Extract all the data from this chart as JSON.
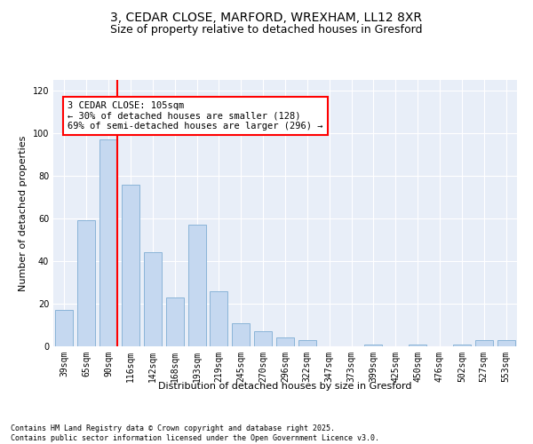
{
  "title1": "3, CEDAR CLOSE, MARFORD, WREXHAM, LL12 8XR",
  "title2": "Size of property relative to detached houses in Gresford",
  "xlabel": "Distribution of detached houses by size in Gresford",
  "ylabel": "Number of detached properties",
  "categories": [
    "39sqm",
    "65sqm",
    "90sqm",
    "116sqm",
    "142sqm",
    "168sqm",
    "193sqm",
    "219sqm",
    "245sqm",
    "270sqm",
    "296sqm",
    "322sqm",
    "347sqm",
    "373sqm",
    "399sqm",
    "425sqm",
    "450sqm",
    "476sqm",
    "502sqm",
    "527sqm",
    "553sqm"
  ],
  "values": [
    17,
    59,
    97,
    76,
    44,
    23,
    57,
    26,
    11,
    7,
    4,
    3,
    0,
    0,
    1,
    0,
    1,
    0,
    1,
    3,
    3
  ],
  "bar_color": "#c5d8f0",
  "bar_edge_color": "#8ab4d8",
  "property_line_color": "red",
  "property_line_x": 2.4,
  "annotation_text": "3 CEDAR CLOSE: 105sqm\n← 30% of detached houses are smaller (128)\n69% of semi-detached houses are larger (296) →",
  "ylim": [
    0,
    125
  ],
  "yticks": [
    0,
    20,
    40,
    60,
    80,
    100,
    120
  ],
  "bg_color": "#e8eef8",
  "footer_text": "Contains HM Land Registry data © Crown copyright and database right 2025.\nContains public sector information licensed under the Open Government Licence v3.0.",
  "title_fontsize": 10,
  "subtitle_fontsize": 9,
  "axis_label_fontsize": 8,
  "tick_fontsize": 7,
  "ann_fontsize": 7.5
}
